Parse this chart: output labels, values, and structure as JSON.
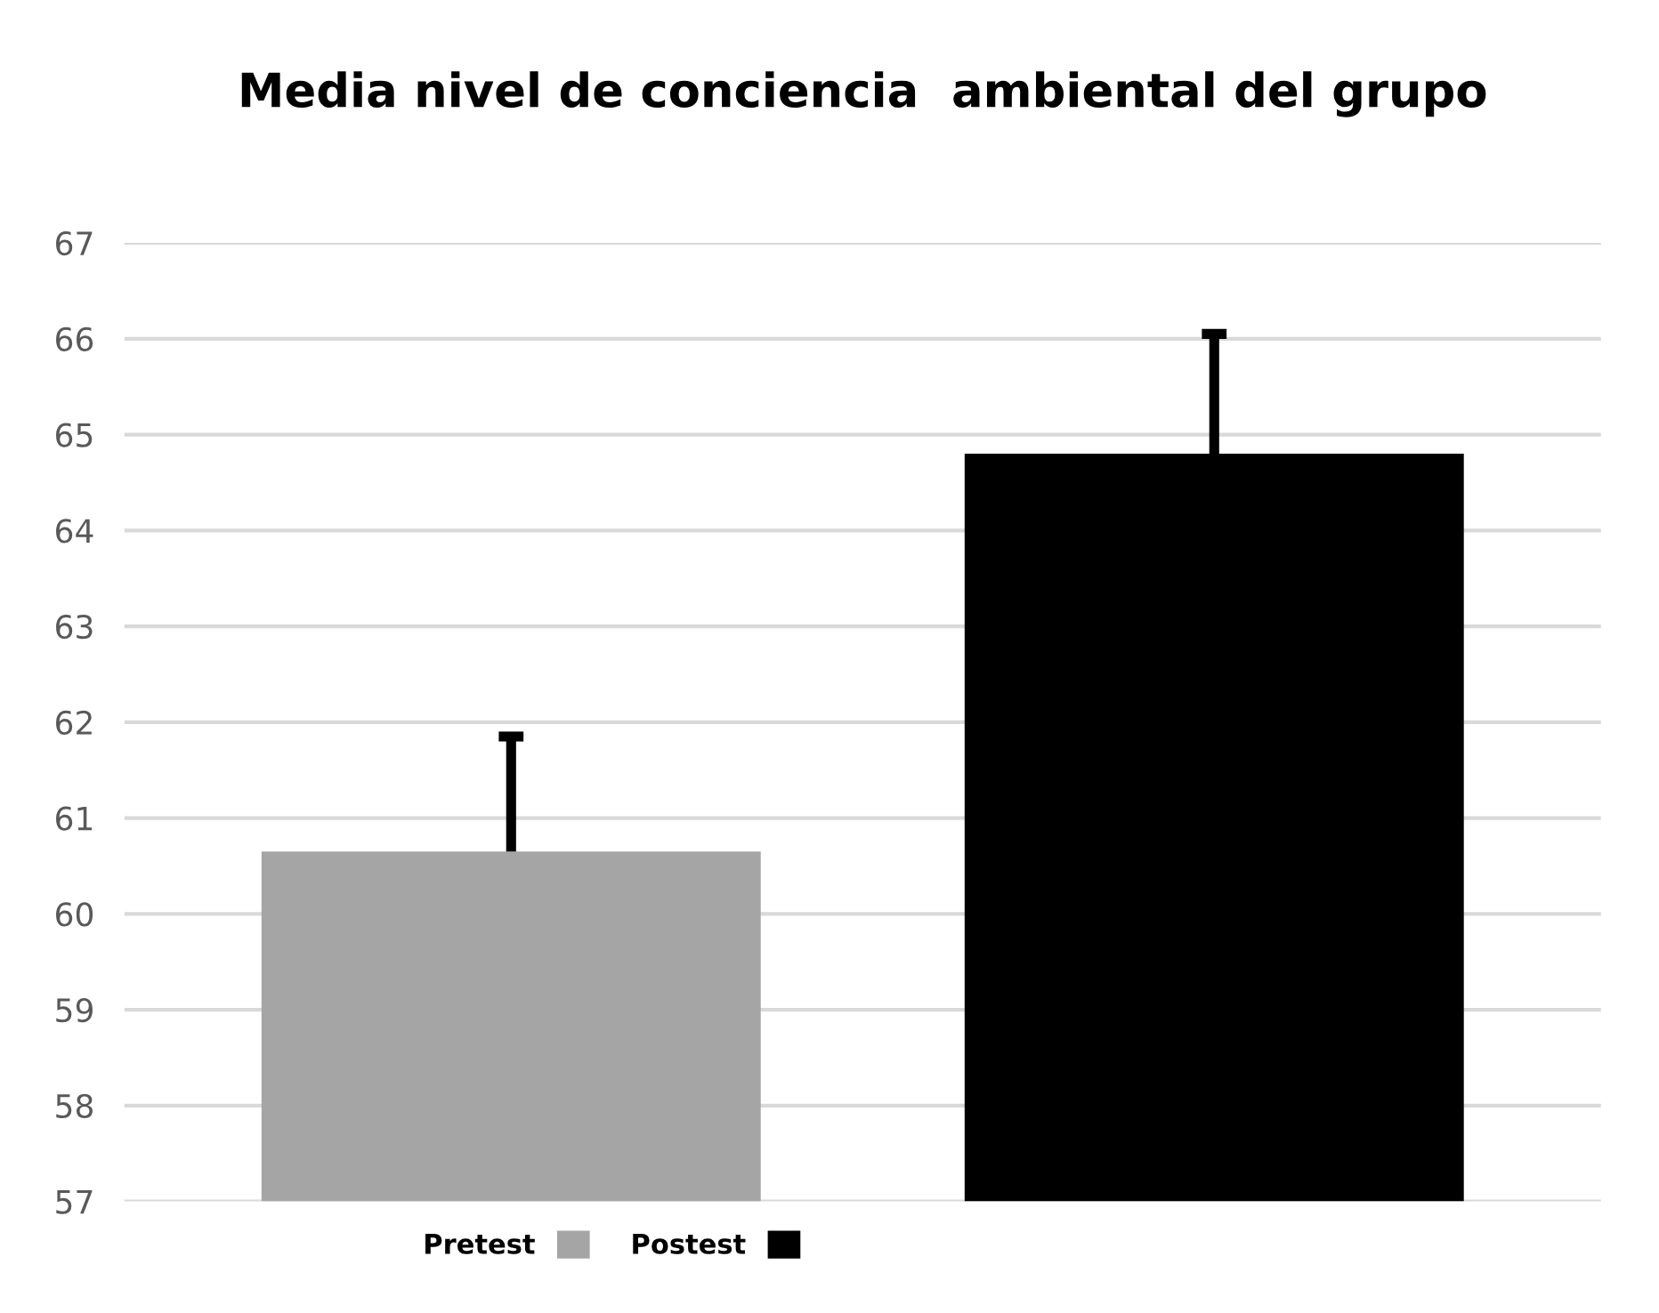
{
  "chart_data": {
    "type": "bar",
    "title": "Media nivel de conciencia  ambiental del grupo",
    "categories": [
      null,
      null
    ],
    "series": [
      {
        "name": "Pretest",
        "color": "#a5a5a5",
        "values": [
          60.65,
          null
        ],
        "errors": [
          [
            60.65,
            61.85
          ],
          null
        ]
      },
      {
        "name": "Postest",
        "color": "#000000",
        "values": [
          null,
          64.8
        ],
        "errors": [
          null,
          [
            64.8,
            66.05
          ]
        ]
      }
    ],
    "ylim": [
      57,
      67
    ],
    "yticks": [
      57,
      58,
      59,
      60,
      61,
      62,
      63,
      64,
      65,
      66,
      67
    ],
    "grid": "y",
    "legend": "bottom"
  }
}
